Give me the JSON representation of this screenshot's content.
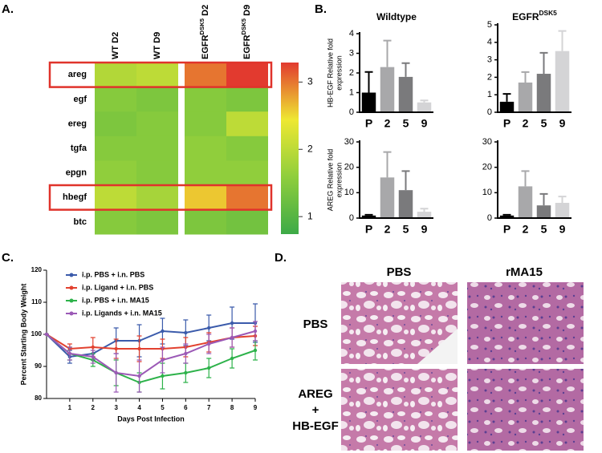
{
  "panel_labels": [
    "A.",
    "B.",
    "C.",
    "D."
  ],
  "chart_data": [
    {
      "type": "heatmap",
      "columns": [
        "WT D2",
        "WT D9",
        {
          "base": "EGFR",
          "sup": "DSK5",
          "suffix": " D2"
        },
        {
          "base": "EGFR",
          "sup": "DSK5",
          "suffix": " D9"
        }
      ],
      "rows": [
        "areg",
        "egf",
        "ereg",
        "tgfa",
        "epgn",
        "hbegf",
        "btc"
      ],
      "values": [
        [
          1.9,
          2.0,
          3.0,
          3.4
        ],
        [
          1.5,
          1.4,
          1.5,
          1.4
        ],
        [
          1.4,
          1.5,
          1.5,
          2.0
        ],
        [
          1.5,
          1.5,
          1.6,
          1.5
        ],
        [
          1.6,
          1.5,
          1.6,
          1.6
        ],
        [
          2.0,
          1.8,
          2.6,
          3.0
        ],
        [
          1.5,
          1.4,
          1.4,
          1.3
        ]
      ],
      "zlim": [
        0.74,
        3.29
      ],
      "zticks": [
        1,
        2,
        3
      ],
      "colormap": [
        "#3daa47",
        "#8fce3c",
        "#eee832",
        "#e23a2f"
      ],
      "highlight_rows": [
        0,
        5
      ],
      "highlight_color": "#e0332b"
    },
    {
      "type": "bar",
      "title": "Wildtype",
      "ylabel": [
        "HB-EGF Relative fold",
        "expression"
      ],
      "categories": [
        "P",
        "2",
        "5",
        "9"
      ],
      "values": [
        1.0,
        2.3,
        1.8,
        0.5
      ],
      "errors": [
        1.05,
        1.35,
        0.7,
        0.1
      ],
      "colors": [
        "#000000",
        "#a8a8aa",
        "#7a7a7c",
        "#d4d4d6"
      ],
      "ylim": [
        0,
        4
      ],
      "yticks": [
        0,
        1,
        2,
        3,
        4
      ]
    },
    {
      "type": "bar",
      "title": {
        "base": "EGFR",
        "sup": "DSK5"
      },
      "categories": [
        "P",
        "2",
        "5",
        "9"
      ],
      "values": [
        0.6,
        1.7,
        2.2,
        3.5
      ],
      "errors": [
        0.45,
        0.6,
        1.2,
        1.15
      ],
      "colors": [
        "#000000",
        "#a8a8aa",
        "#7a7a7c",
        "#d4d4d6"
      ],
      "ylim": [
        0,
        5
      ],
      "yticks": [
        0,
        1,
        2,
        3,
        4,
        5
      ]
    },
    {
      "type": "bar",
      "ylabel": [
        "AREG Relative fold",
        "expression"
      ],
      "categories": [
        "P",
        "2",
        "5",
        "9"
      ],
      "values": [
        1.0,
        16,
        11,
        2.5
      ],
      "errors": [
        0.3,
        10,
        7.5,
        1.2
      ],
      "colors": [
        "#000000",
        "#a8a8aa",
        "#7a7a7c",
        "#d4d4d6"
      ],
      "ylim": [
        0,
        30
      ],
      "yticks": [
        0,
        10,
        20,
        30
      ]
    },
    {
      "type": "bar",
      "categories": [
        "P",
        "2",
        "5",
        "9"
      ],
      "values": [
        1.0,
        12.5,
        5,
        6
      ],
      "errors": [
        0.3,
        6,
        4.5,
        2.5
      ],
      "colors": [
        "#000000",
        "#a8a8aa",
        "#7a7a7c",
        "#d4d4d6"
      ],
      "ylim": [
        0,
        30
      ],
      "yticks": [
        0,
        10,
        20,
        30
      ]
    },
    {
      "type": "line",
      "xlabel": "Days Post Infection",
      "ylabel": "Percent  Starting Body Weight",
      "x": [
        0,
        1,
        2,
        3,
        4,
        5,
        6,
        7,
        8,
        9
      ],
      "xlim": [
        0,
        9
      ],
      "xticks": [
        1,
        2,
        3,
        4,
        5,
        6,
        7,
        8,
        9
      ],
      "ylim": [
        80,
        120
      ],
      "yticks": [
        80,
        90,
        100,
        110,
        120
      ],
      "legend": "upper left",
      "series": [
        {
          "name": "i.p. PBS + i.n. PBS",
          "color": "#3b5bab",
          "values": [
            100,
            93,
            94,
            98,
            98,
            101,
            100.5,
            102,
            103.5,
            103.5
          ],
          "errors": [
            0,
            2,
            2,
            4,
            5,
            4,
            4,
            4,
            5,
            6
          ]
        },
        {
          "name": "i.p. Ligand + i.n. PBS",
          "color": "#e2412f",
          "values": [
            100,
            95.5,
            96,
            95.5,
            95.5,
            95.5,
            96,
            97.5,
            99,
            99.5
          ],
          "errors": [
            0,
            1.5,
            3,
            3,
            4,
            3,
            3,
            3,
            3,
            3
          ]
        },
        {
          "name": "i.p. PBS + i.n. MA15",
          "color": "#2db24a",
          "values": [
            100,
            94,
            92,
            88,
            85,
            87,
            88,
            89.5,
            92.5,
            95
          ],
          "errors": [
            0,
            2,
            2,
            4,
            3,
            4,
            3,
            3,
            3,
            3
          ]
        },
        {
          "name": "i.p. Ligands + i.n. MA15",
          "color": "#9b59b6",
          "values": [
            100,
            94,
            93,
            88,
            87,
            92,
            94,
            97,
            99,
            101
          ],
          "errors": [
            0,
            2,
            2,
            6,
            5,
            4,
            3,
            3,
            3,
            3
          ]
        }
      ]
    }
  ],
  "micrographs": {
    "columns": [
      "PBS",
      "rMA15"
    ],
    "rows": [
      [
        "PBS"
      ],
      [
        "AREG",
        "+",
        "HB-EGF"
      ]
    ]
  }
}
